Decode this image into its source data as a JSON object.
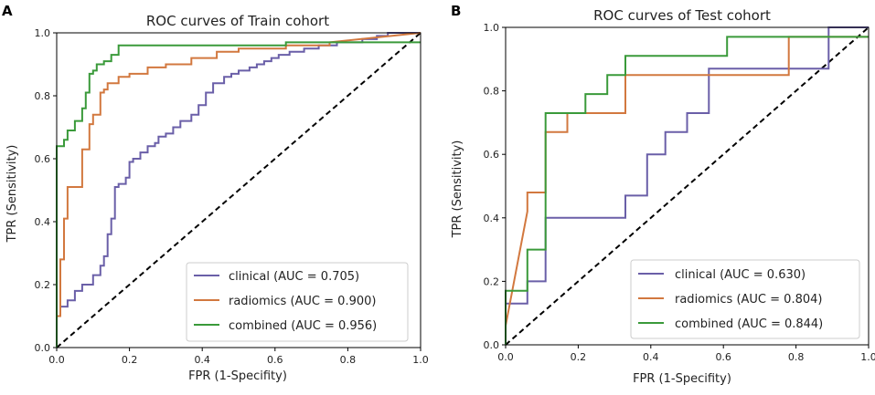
{
  "colors": {
    "clinical": "#6a5fa8",
    "radiomics": "#d2783f",
    "combined": "#3a9a3a",
    "diagonal": "#000000"
  },
  "chart_data": [
    {
      "type": "line",
      "panel_label": "A",
      "title": "ROC curves of Train cohort",
      "xlabel": "FPR (1-Specifity)",
      "ylabel": "TPR (Sensitivity)",
      "xlim": [
        0,
        1
      ],
      "ylim": [
        0,
        1
      ],
      "x_ticks": [
        "0.0",
        "0.2",
        "0.4",
        "0.6",
        "0.8",
        "1.0"
      ],
      "y_ticks": [
        "0.0",
        "0.2",
        "0.4",
        "0.6",
        "0.8",
        "1.0"
      ],
      "legend": {
        "position": "lower-right"
      },
      "diagonal": {
        "x": [
          0,
          1
        ],
        "y": [
          0,
          1
        ],
        "style": "dashed"
      },
      "series": [
        {
          "name": "clinical (AUC = 0.705)",
          "color_key": "clinical",
          "x": [
            0.0,
            0.0,
            0.01,
            0.01,
            0.03,
            0.03,
            0.05,
            0.05,
            0.07,
            0.07,
            0.1,
            0.1,
            0.12,
            0.12,
            0.13,
            0.13,
            0.14,
            0.14,
            0.15,
            0.15,
            0.16,
            0.16,
            0.17,
            0.17,
            0.19,
            0.19,
            0.2,
            0.2,
            0.21,
            0.21,
            0.23,
            0.23,
            0.25,
            0.25,
            0.27,
            0.27,
            0.28,
            0.28,
            0.3,
            0.3,
            0.32,
            0.32,
            0.34,
            0.34,
            0.37,
            0.37,
            0.39,
            0.39,
            0.41,
            0.41,
            0.43,
            0.43,
            0.46,
            0.46,
            0.48,
            0.48,
            0.5,
            0.5,
            0.53,
            0.53,
            0.55,
            0.55,
            0.57,
            0.57,
            0.59,
            0.59,
            0.61,
            0.61,
            0.64,
            0.64,
            0.68,
            0.68,
            0.72,
            0.72,
            0.77,
            0.77,
            0.84,
            0.84,
            0.88,
            0.88,
            0.91,
            0.91,
            0.95,
            0.95,
            0.97,
            0.97,
            1.0
          ],
          "y": [
            0.0,
            0.1,
            0.1,
            0.13,
            0.13,
            0.15,
            0.15,
            0.18,
            0.18,
            0.2,
            0.2,
            0.23,
            0.23,
            0.26,
            0.26,
            0.29,
            0.29,
            0.36,
            0.36,
            0.41,
            0.41,
            0.51,
            0.51,
            0.52,
            0.52,
            0.54,
            0.54,
            0.59,
            0.59,
            0.6,
            0.6,
            0.62,
            0.62,
            0.64,
            0.64,
            0.65,
            0.65,
            0.67,
            0.67,
            0.68,
            0.68,
            0.7,
            0.7,
            0.72,
            0.72,
            0.74,
            0.74,
            0.77,
            0.77,
            0.81,
            0.81,
            0.84,
            0.84,
            0.86,
            0.86,
            0.87,
            0.87,
            0.88,
            0.88,
            0.89,
            0.89,
            0.9,
            0.9,
            0.91,
            0.91,
            0.92,
            0.92,
            0.93,
            0.93,
            0.94,
            0.94,
            0.95,
            0.95,
            0.96,
            0.96,
            0.97,
            0.97,
            0.98,
            0.98,
            0.99,
            0.99,
            1.0,
            1.0,
            1.0,
            1.0,
            1.0,
            1.0
          ]
        },
        {
          "name": "radiomics (AUC = 0.900)",
          "color_key": "radiomics",
          "x": [
            0.0,
            0.0,
            0.01,
            0.01,
            0.02,
            0.02,
            0.03,
            0.03,
            0.07,
            0.07,
            0.09,
            0.09,
            0.1,
            0.1,
            0.12,
            0.12,
            0.13,
            0.13,
            0.14,
            0.14,
            0.17,
            0.17,
            0.2,
            0.2,
            0.25,
            0.25,
            0.3,
            0.3,
            0.37,
            0.37,
            0.44,
            0.44,
            0.5,
            0.5,
            0.63,
            0.63,
            0.75,
            0.75,
            1.0
          ],
          "y": [
            0.0,
            0.1,
            0.1,
            0.28,
            0.28,
            0.41,
            0.41,
            0.51,
            0.51,
            0.63,
            0.63,
            0.71,
            0.71,
            0.74,
            0.74,
            0.81,
            0.81,
            0.82,
            0.82,
            0.84,
            0.84,
            0.86,
            0.86,
            0.87,
            0.87,
            0.89,
            0.89,
            0.9,
            0.9,
            0.92,
            0.92,
            0.94,
            0.94,
            0.95,
            0.95,
            0.96,
            0.96,
            0.97,
            1.0
          ]
        },
        {
          "name": "combined (AUC = 0.956)",
          "color_key": "combined",
          "x": [
            0.0,
            0.0,
            0.02,
            0.02,
            0.03,
            0.03,
            0.05,
            0.05,
            0.07,
            0.07,
            0.08,
            0.08,
            0.09,
            0.09,
            0.1,
            0.1,
            0.11,
            0.11,
            0.13,
            0.13,
            0.15,
            0.15,
            0.17,
            0.17,
            0.63,
            0.63,
            0.98,
            0.98,
            1.0
          ],
          "y": [
            0.0,
            0.64,
            0.64,
            0.66,
            0.66,
            0.69,
            0.69,
            0.72,
            0.72,
            0.76,
            0.76,
            0.81,
            0.81,
            0.87,
            0.87,
            0.88,
            0.88,
            0.9,
            0.9,
            0.91,
            0.91,
            0.93,
            0.93,
            0.96,
            0.96,
            0.97,
            0.97,
            0.97,
            0.97
          ]
        }
      ]
    },
    {
      "type": "line",
      "panel_label": "B",
      "title": "ROC curves of Test cohort",
      "xlabel": "FPR (1-Specifity)",
      "ylabel": "TPR (Sensitivity)",
      "xlim": [
        0,
        1
      ],
      "ylim": [
        0,
        1
      ],
      "x_ticks": [
        "0.0",
        "0.2",
        "0.4",
        "0.6",
        "0.8",
        "1.0"
      ],
      "y_ticks": [
        "0.0",
        "0.2",
        "0.4",
        "0.6",
        "0.8",
        "1.0"
      ],
      "legend": {
        "position": "lower-right"
      },
      "diagonal": {
        "x": [
          0,
          1
        ],
        "y": [
          0,
          1
        ],
        "style": "dashed"
      },
      "series": [
        {
          "name": "clinical (AUC = 0.630)",
          "color_key": "clinical",
          "x": [
            0.0,
            0.0,
            0.06,
            0.06,
            0.11,
            0.11,
            0.33,
            0.33,
            0.39,
            0.39,
            0.44,
            0.44,
            0.5,
            0.5,
            0.56,
            0.56,
            0.61,
            0.61,
            0.89,
            0.89,
            1.0
          ],
          "y": [
            0.0,
            0.13,
            0.13,
            0.2,
            0.2,
            0.4,
            0.4,
            0.47,
            0.47,
            0.6,
            0.6,
            0.67,
            0.67,
            0.73,
            0.73,
            0.87,
            0.87,
            0.87,
            0.87,
            1.0,
            1.0
          ]
        },
        {
          "name": "radiomics (AUC = 0.804)",
          "color_key": "radiomics",
          "x": [
            0.0,
            0.06,
            0.06,
            0.06,
            0.06,
            0.11,
            0.11,
            0.17,
            0.17,
            0.33,
            0.33,
            0.78,
            0.78,
            1.0
          ],
          "y": [
            0.06,
            0.42,
            0.42,
            0.48,
            0.48,
            0.48,
            0.67,
            0.67,
            0.73,
            0.73,
            0.85,
            0.85,
            0.97,
            0.97
          ]
        },
        {
          "name": "combined (AUC = 0.844)",
          "color_key": "combined",
          "x": [
            0.0,
            0.0,
            0.06,
            0.06,
            0.11,
            0.11,
            0.22,
            0.22,
            0.28,
            0.28,
            0.33,
            0.33,
            0.61,
            0.61,
            1.0
          ],
          "y": [
            0.0,
            0.17,
            0.17,
            0.3,
            0.3,
            0.73,
            0.73,
            0.79,
            0.79,
            0.85,
            0.85,
            0.91,
            0.91,
            0.97,
            0.97
          ]
        }
      ]
    }
  ]
}
